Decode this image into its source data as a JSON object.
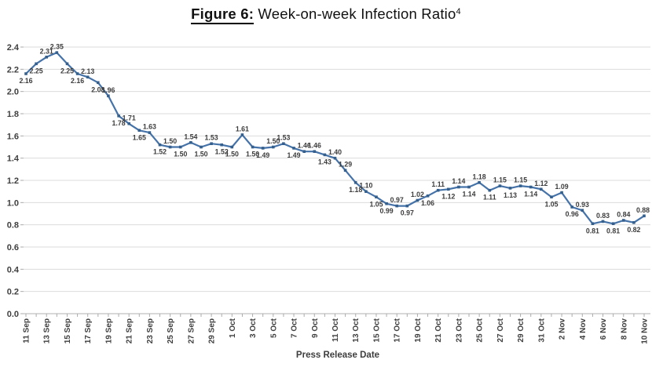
{
  "title": {
    "figure_label": "Figure 6:",
    "main": " Week-on-week Infection Ratio",
    "superscript": "4"
  },
  "chart_data": {
    "type": "line",
    "title": "Figure 6: Week-on-week Infection Ratio(4)",
    "xlabel": "Press Release Date",
    "ylabel": "",
    "ylim": [
      0,
      2.4
    ],
    "y_tick_step": 0.2,
    "y_tick_labels": [
      "0.0",
      "0.2",
      "0.4",
      "0.6",
      "0.8",
      "1.0",
      "1.2",
      "1.4",
      "1.6",
      "1.8",
      "2.0",
      "2.2",
      "2.4"
    ],
    "grid": "horizontal",
    "legend": "none",
    "x_label_interval": 2,
    "line_color": "#4573a9",
    "marker_color": "#35608e",
    "x": [
      "11 Sep",
      "12 Sep",
      "13 Sep",
      "14 Sep",
      "15 Sep",
      "16 Sep",
      "17 Sep",
      "18 Sep",
      "19 Sep",
      "20 Sep",
      "21 Sep",
      "22 Sep",
      "23 Sep",
      "24 Sep",
      "25 Sep",
      "26 Sep",
      "27 Sep",
      "28 Sep",
      "29 Sep",
      "30 Sep",
      "1 Oct",
      "2 Oct",
      "3 Oct",
      "4 Oct",
      "5 Oct",
      "6 Oct",
      "7 Oct",
      "8 Oct",
      "9 Oct",
      "10 Oct",
      "11 Oct",
      "12 Oct",
      "13 Oct",
      "14 Oct",
      "15 Oct",
      "16 Oct",
      "17 Oct",
      "18 Oct",
      "19 Oct",
      "20 Oct",
      "21 Oct",
      "22 Oct",
      "23 Oct",
      "24 Oct",
      "25 Oct",
      "26 Oct",
      "27 Oct",
      "28 Oct",
      "29 Oct",
      "30 Oct",
      "31 Oct",
      "1 Nov",
      "2 Nov",
      "3 Nov",
      "4 Nov",
      "5 Nov",
      "6 Nov",
      "7 Nov",
      "8 Nov",
      "9 Nov",
      "10 Nov"
    ],
    "values": [
      2.16,
      2.25,
      2.31,
      2.35,
      2.25,
      2.16,
      2.13,
      2.08,
      1.96,
      1.78,
      1.71,
      1.65,
      1.63,
      1.52,
      1.5,
      1.5,
      1.54,
      1.5,
      1.53,
      1.52,
      1.5,
      1.61,
      1.5,
      1.49,
      1.5,
      1.53,
      1.49,
      1.46,
      1.46,
      1.43,
      1.4,
      1.29,
      1.18,
      1.1,
      1.05,
      0.99,
      0.97,
      0.97,
      1.02,
      1.06,
      1.11,
      1.12,
      1.14,
      1.14,
      1.18,
      1.11,
      1.15,
      1.13,
      1.15,
      1.14,
      1.12,
      1.05,
      1.09,
      0.96,
      0.93,
      0.81,
      0.83,
      0.81,
      0.84,
      0.82,
      0.88
    ],
    "point_labels": [
      "2.16",
      "2.25",
      "2.31",
      "2.35",
      "2.25",
      "2.16",
      "2.13",
      "2.08",
      "1.96",
      "1.78",
      "1.71",
      "1.65",
      "1.63",
      "1.52",
      "1.50",
      "1.50",
      "1.54",
      "1.50",
      "1.53",
      "1.52",
      "1.50",
      "1.61",
      "1.50",
      "1.49",
      "1.50",
      "1.53",
      "1.49",
      "1.46",
      "1.46",
      "1.43",
      "1.40",
      "1.29",
      "1.18",
      "1.10",
      "1.05",
      "0.99",
      "0.97",
      "0.97",
      "1.02",
      "1.06",
      "1.11",
      "1.12",
      "1.14",
      "1.14",
      "1.18",
      "1.11",
      "1.15",
      "1.13",
      "1.15",
      "1.14",
      "1.12",
      "1.05",
      "1.09",
      "0.96",
      "0.93",
      "0.81",
      "0.83",
      "0.81",
      "0.84",
      "0.82",
      "0.88"
    ],
    "label_positions": [
      "below",
      "below",
      "above",
      "above",
      "below",
      "below",
      "above",
      "below",
      "above",
      "below",
      "above",
      "below",
      "above",
      "below",
      "above",
      "below",
      "above",
      "below",
      "above",
      "below",
      "below",
      "above",
      "below",
      "below",
      "above",
      "above",
      "below",
      "above",
      "above",
      "below",
      "above",
      "above",
      "below",
      "above",
      "below",
      "below",
      "above",
      "below",
      "above",
      "below",
      "above",
      "below",
      "above",
      "below",
      "above",
      "below",
      "above",
      "below",
      "above",
      "below",
      "above",
      "below",
      "above",
      "below",
      "above",
      "below",
      "above",
      "below",
      "above",
      "below",
      "above"
    ]
  },
  "colors": {
    "background": "#ffffff",
    "grid": "#dbdbdb",
    "axis_line": "#c0c0c0",
    "tick": "#ababab",
    "data_label_text": "#3d3d3d",
    "axis_text": "#3f3f3f",
    "title_text": "#111111"
  }
}
